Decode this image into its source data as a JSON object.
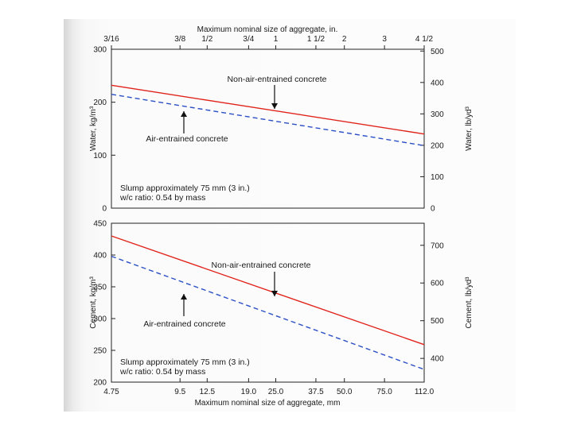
{
  "chart_data": [
    {
      "type": "line",
      "top_axis": {
        "label": "Maximum nominal size of aggregate, in.",
        "ticks": [
          {
            "label": "3/16",
            "x": 4.75
          },
          {
            "label": "3/8",
            "x": 9.5
          },
          {
            "label": "1/2",
            "x": 12.5
          },
          {
            "label": "3/4",
            "x": 19.0
          },
          {
            "label": "1",
            "x": 25.0
          },
          {
            "label": "1 1/2",
            "x": 37.5
          },
          {
            "label": "2",
            "x": 50.0
          },
          {
            "label": "3",
            "x": 75.0
          },
          {
            "label": "4 1/2",
            "x": 112.0
          }
        ]
      },
      "ylabel": "Water, kg/m³",
      "ylim": [
        0,
        300
      ],
      "yticks": [
        "0",
        "100",
        "200",
        "300"
      ],
      "y2label": "Water, lb/yd³",
      "y2lim": [
        0,
        505.7
      ],
      "y2ticks": [
        "0",
        "100",
        "200",
        "300",
        "400",
        "500"
      ],
      "series": [
        {
          "name": "Non-air-entrained concrete",
          "color": "#e0241c",
          "style": "solid",
          "x": [
            4.75,
            112.0
          ],
          "y": [
            232,
            140
          ]
        },
        {
          "name": "Air-entrained concrete",
          "color": "#2b4fc4",
          "style": "dashed",
          "x": [
            4.75,
            112.0
          ],
          "y": [
            215,
            118
          ]
        }
      ],
      "annotations": [
        {
          "text": "Non-air-entrained concrete",
          "arrow": "down"
        },
        {
          "text": "Air-entrained concrete",
          "arrow": "up"
        }
      ],
      "note": [
        "Slump approximately 75 mm (3 in.)",
        "w/c ratio: 0.54 by mass"
      ]
    },
    {
      "type": "line",
      "xlabel": "Maximum nominal size of aggregate, mm",
      "xticks": [
        4.75,
        9.5,
        12.5,
        19.0,
        25.0,
        37.5,
        50.0,
        75.0,
        112.0
      ],
      "xticklabels": [
        "4.75",
        "9.5",
        "12.5",
        "19.0",
        "25.0",
        "37.5",
        "50.0",
        "75.0",
        "112.0"
      ],
      "ylabel": "Cement, kg/m³",
      "ylim": [
        200,
        450
      ],
      "yticks": [
        "200",
        "250",
        "300",
        "350",
        "400",
        "450"
      ],
      "y2label": "Cement, lb/yd³",
      "y2lim": [
        337.1,
        758.5
      ],
      "y2ticks": [
        "400",
        "500",
        "600",
        "700"
      ],
      "series": [
        {
          "name": "Non-air-entrained concrete",
          "color": "#e0241c",
          "style": "solid",
          "x": [
            4.75,
            112.0
          ],
          "y": [
            430,
            259
          ]
        },
        {
          "name": "Air-entrained concrete",
          "color": "#2b4fc4",
          "style": "dashed",
          "x": [
            4.75,
            112.0
          ],
          "y": [
            398,
            220
          ]
        }
      ],
      "annotations": [
        {
          "text": "Non-air-entrained concrete",
          "arrow": "down"
        },
        {
          "text": "Air-entrained concrete",
          "arrow": "up"
        }
      ],
      "note": [
        "Slump approximately 75 mm (3 in.)",
        "w/c ratio: 0.54 by mass"
      ]
    }
  ]
}
